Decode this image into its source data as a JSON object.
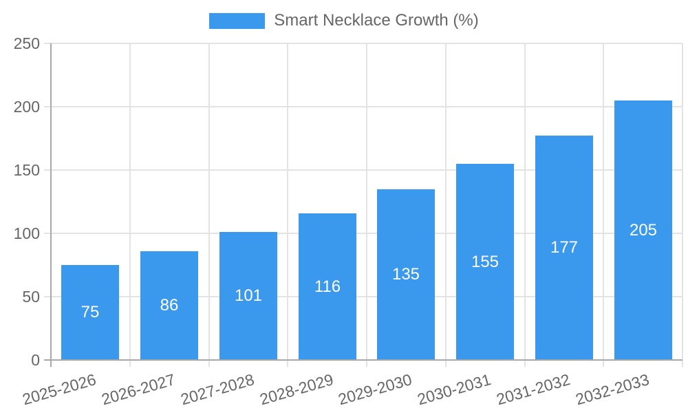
{
  "chart_data": {
    "type": "bar",
    "title": "Smart Necklace Growth (%)",
    "categories": [
      "2025-2026",
      "2026-2027",
      "2027-2028",
      "2028-2029",
      "2029-2030",
      "2030-2031",
      "2031-2032",
      "2032-2033"
    ],
    "values": [
      75,
      86,
      101,
      116,
      135,
      155,
      177,
      205
    ],
    "xlabel": "",
    "ylabel": "",
    "ylim": [
      0,
      250
    ],
    "yticks": [
      0,
      50,
      100,
      150,
      200,
      250
    ],
    "grid": true,
    "legend_position": "top-center",
    "bar_value_labels_inside": true,
    "colors": {
      "bar": "#3b99ed",
      "bar_label": "#ffffff",
      "tick_text": "#666666",
      "gridline": "#e3e3e3",
      "axis_line": "#a8a8a8",
      "background": "#ffffff"
    }
  }
}
